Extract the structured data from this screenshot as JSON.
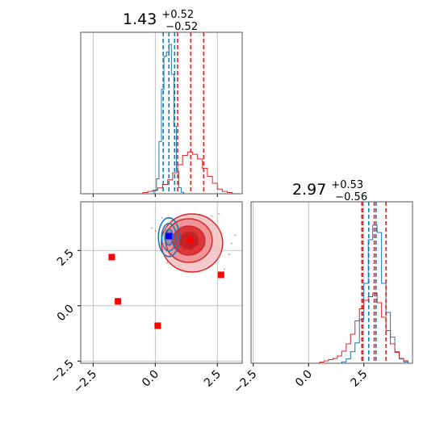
{
  "chart_data": {
    "type": "corner",
    "grid": true,
    "legend": "none",
    "titles": [
      {
        "value": "1.43",
        "plus": "+0.52",
        "minus": "−0.52"
      },
      {
        "value": "2.97",
        "plus": "+0.53",
        "minus": "−0.56"
      }
    ],
    "param1_range": [
      -3.0,
      3.5
    ],
    "param2_range": [
      -2.6,
      4.7
    ],
    "x_ticks": [
      "−2.5",
      "0.0",
      "2.5"
    ],
    "y_ticks": [
      "−2.5",
      "0.0",
      "2.5"
    ],
    "x_tick_values": [
      -2.5,
      0.0,
      2.5
    ],
    "y_tick_values": [
      -2.5,
      0.0,
      2.5
    ],
    "series": [
      {
        "color": "#1f77b4",
        "param1_quantiles": [
          0.32,
          0.55,
          0.78
        ],
        "param2_quantiles": [
          2.45,
          2.72,
          3.05
        ],
        "hist1": {
          "x": [
            0.0,
            0.1,
            0.2,
            0.3,
            0.4,
            0.5,
            0.6,
            0.7,
            0.8,
            0.9,
            1.0,
            1.1
          ],
          "y": [
            0.02,
            0.1,
            0.35,
            0.7,
            0.92,
            0.95,
            1.0,
            0.8,
            0.45,
            0.15,
            0.04,
            0.01
          ]
        },
        "hist2": {
          "x": [
            1.4,
            1.6,
            1.8,
            2.0,
            2.2,
            2.4,
            2.6,
            2.8,
            3.0,
            3.2,
            3.4,
            3.6,
            3.8,
            4.0,
            4.2,
            4.4
          ],
          "y": [
            0.0,
            0.01,
            0.03,
            0.08,
            0.14,
            0.3,
            0.55,
            0.85,
            0.95,
            0.9,
            0.55,
            0.35,
            0.18,
            0.08,
            0.03,
            0.01
          ]
        }
      },
      {
        "color": "#d62728",
        "param1_quantiles": [
          0.9,
          1.43,
          1.95
        ],
        "param2_quantiles": [
          2.41,
          2.97,
          3.5
        ],
        "hist1": {
          "x": [
            -0.4,
            -0.2,
            0.0,
            0.2,
            0.4,
            0.6,
            0.8,
            1.0,
            1.2,
            1.4,
            1.6,
            1.8,
            2.0,
            2.2,
            2.4,
            2.6,
            2.8,
            3.0
          ],
          "y": [
            0.01,
            0.02,
            0.03,
            0.05,
            0.08,
            0.12,
            0.18,
            0.25,
            0.33,
            0.36,
            0.34,
            0.3,
            0.22,
            0.15,
            0.09,
            0.04,
            0.02,
            0.01
          ]
        },
        "hist2": {
          "x": [
            0.6,
            0.8,
            1.0,
            1.2,
            1.4,
            1.6,
            1.8,
            2.0,
            2.2,
            2.4,
            2.6,
            2.8,
            3.0,
            3.2,
            3.4,
            3.6,
            3.8,
            4.0,
            4.2,
            4.4
          ],
          "y": [
            0.01,
            0.02,
            0.03,
            0.04,
            0.06,
            0.1,
            0.16,
            0.24,
            0.35,
            0.45,
            0.52,
            0.55,
            0.58,
            0.5,
            0.38,
            0.27,
            0.16,
            0.09,
            0.04,
            0.02
          ]
        }
      }
    ],
    "blue_marker": {
      "x": 0.55,
      "y": 3.15
    },
    "red_markers": [
      {
        "x": 1.4,
        "y": 2.95
      },
      {
        "x": -1.75,
        "y": 2.2
      },
      {
        "x": -1.5,
        "y": 0.2
      },
      {
        "x": 0.1,
        "y": -0.9
      },
      {
        "x": 2.65,
        "y": 1.4
      }
    ]
  }
}
